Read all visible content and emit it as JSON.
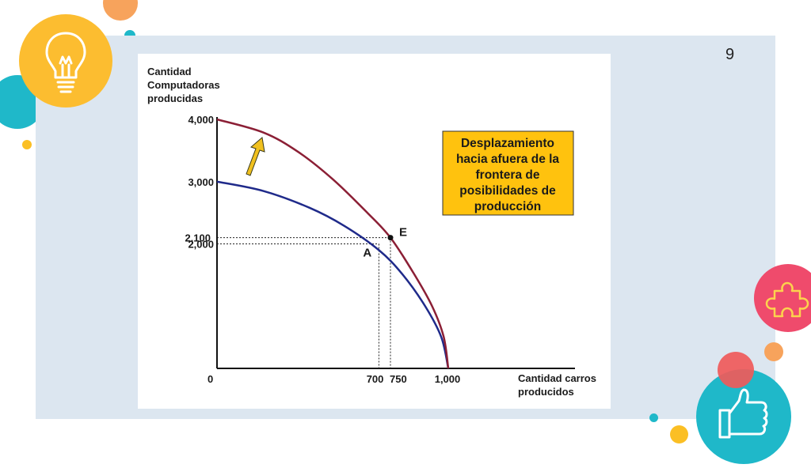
{
  "slide": {
    "page_number": "9"
  },
  "colors": {
    "panel": "#dce6f0",
    "original_curve": "#1f2a8a",
    "shifted_curve": "#8b1f35",
    "note_box": "#ffc20e",
    "arrow": "#f0c01e"
  },
  "icons": {
    "top_left": "lightbulb-icon",
    "right": "puzzle-icon",
    "bottom_right": "thumbs-up-icon"
  },
  "chart_data": {
    "type": "line",
    "ylabel_lines": [
      "Cantidad",
      "Computadoras",
      "producidas"
    ],
    "xlabel_lines": [
      "Cantidad carros",
      "producidos"
    ],
    "xlim": [
      0,
      1000
    ],
    "ylim": [
      0,
      4000
    ],
    "origin_label": "0",
    "x_ticks": [
      {
        "value": 700,
        "label": "700"
      },
      {
        "value": 750,
        "label": "750"
      },
      {
        "value": 1000,
        "label": "1,000"
      }
    ],
    "y_ticks": [
      {
        "value": 4000,
        "label": "4,000"
      },
      {
        "value": 3000,
        "label": "3,000"
      },
      {
        "value": 2100,
        "label": "2,100"
      },
      {
        "value": 2000,
        "label": "2,000"
      }
    ],
    "series": [
      {
        "x": [
          0,
          200,
          400,
          550,
          700,
          800,
          900,
          970,
          1000
        ],
        "y": [
          3000,
          2850,
          2580,
          2290,
          1900,
          1520,
          1000,
          500,
          0
        ]
      },
      {
        "x": [
          0,
          200,
          350,
          500,
          650,
          750,
          850,
          930,
          980,
          1000
        ],
        "y": [
          4000,
          3790,
          3480,
          3040,
          2500,
          2100,
          1530,
          1000,
          510,
          0
        ]
      }
    ],
    "points": [
      {
        "label": "A",
        "x": 700,
        "y": 2000
      },
      {
        "label": "E",
        "x": 750,
        "y": 2100
      }
    ],
    "annotation_lines": [
      "Desplazamiento",
      "hacia afuera de la",
      "frontera de",
      "posibilidades de",
      "producción"
    ]
  }
}
